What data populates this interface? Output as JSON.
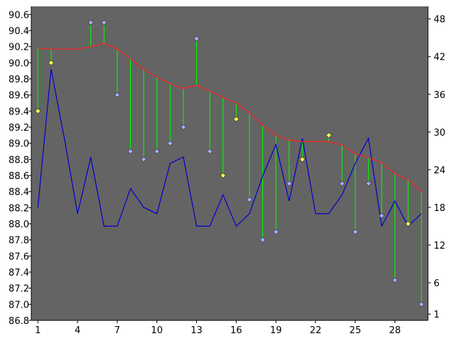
{
  "chart_data": {
    "type": "line",
    "x": [
      1,
      2,
      3,
      4,
      5,
      6,
      7,
      8,
      9,
      10,
      11,
      12,
      13,
      14,
      15,
      16,
      17,
      18,
      19,
      20,
      21,
      22,
      23,
      24,
      25,
      26,
      27,
      28,
      29,
      30
    ],
    "series": [
      {
        "values": [
          89.4,
          90.0,
          null,
          null,
          90.5,
          90.5,
          89.6,
          88.9,
          88.8,
          88.9,
          89.0,
          89.2,
          90.3,
          88.9,
          88.6,
          89.3,
          88.3,
          87.8,
          87.9,
          88.5,
          88.8,
          null,
          89.1,
          88.5,
          87.9,
          88.5,
          88.1,
          87.3,
          88.0,
          87.0
        ],
        "color": "#aaaaff",
        "highlight_color": "#ffff55",
        "highlighted_x": [
          1,
          2,
          15,
          16,
          21,
          23,
          29
        ]
      },
      {
        "values": [
          90.18,
          90.17,
          90.17,
          90.17,
          90.2,
          90.24,
          90.17,
          90.05,
          89.92,
          89.82,
          89.74,
          89.68,
          89.72,
          89.65,
          89.57,
          89.5,
          89.38,
          89.22,
          89.1,
          89.04,
          89.02,
          89.02,
          89.02,
          88.98,
          88.87,
          88.82,
          88.76,
          88.62,
          88.55,
          88.4
        ],
        "color": "#ff2020"
      },
      {
        "values": [
          18.0,
          40.0,
          29.0,
          17.0,
          26.0,
          15.0,
          15.0,
          21.0,
          18.0,
          17.0,
          25.0,
          26.0,
          15.0,
          15.0,
          20.0,
          15.0,
          17.0,
          23.0,
          28.0,
          19.0,
          29.0,
          17.0,
          17.0,
          20.0,
          25.0,
          29.0,
          15.0,
          19.0,
          15.0,
          17.0
        ],
        "color": "#0000cc",
        "axis": "right"
      }
    ],
    "drop_lines_color": "#00ff00",
    "xticks": [
      1,
      4,
      7,
      10,
      13,
      16,
      19,
      22,
      25,
      28
    ],
    "yticks_left": [
      "86.8",
      "87.0",
      "87.2",
      "87.4",
      "87.6",
      "87.8",
      "88.0",
      "88.2",
      "88.4",
      "88.6",
      "88.8",
      "89.0",
      "89.2",
      "89.4",
      "89.6",
      "89.8",
      "90.0",
      "90.2",
      "90.4",
      "90.6"
    ],
    "yticks_right": [
      "1",
      "6",
      "12",
      "18",
      "24",
      "30",
      "36",
      "42",
      "48"
    ],
    "ylim_left": [
      86.8,
      90.7
    ],
    "ylim_right": [
      0,
      50
    ],
    "xlim": [
      0.5,
      30.5
    ],
    "background": "#646464",
    "grid": false
  }
}
